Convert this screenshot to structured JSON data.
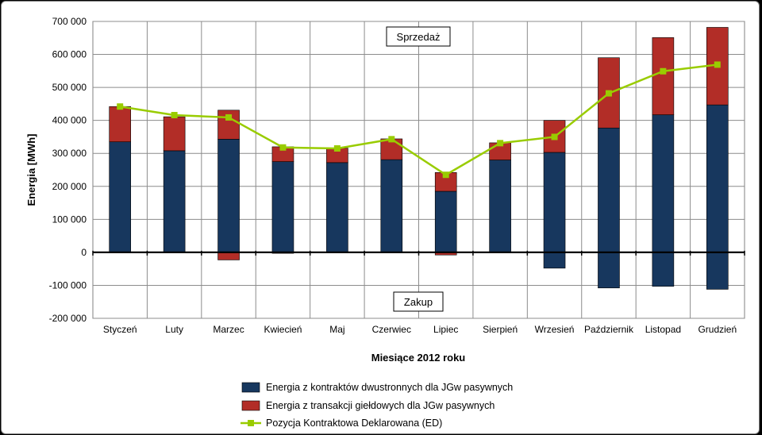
{
  "chart_data": {
    "type": "bar",
    "stacked": true,
    "categories": [
      "Styczeń",
      "Luty",
      "Marzec",
      "Kwiecień",
      "Maj",
      "Czerwiec",
      "Lipiec",
      "Sierpień",
      "Wrzesień",
      "Październik",
      "Listopad",
      "Grudzień"
    ],
    "series": [
      {
        "name": "Energia z kontraktów dwustronnych dla JGw pasywnych",
        "type": "bar",
        "color": "#17375e",
        "values": [
          335000,
          308000,
          343000,
          275000,
          272000,
          281000,
          185000,
          280000,
          303000,
          377000,
          417000,
          447000
        ],
        "negative_values": [
          0,
          0,
          0,
          0,
          0,
          0,
          0,
          0,
          -48000,
          -108000,
          -103000,
          -112000
        ]
      },
      {
        "name": "Energia z transakcji giełdowych dla JGw pasywnych",
        "type": "bar",
        "color": "#b22d27",
        "values": [
          107000,
          103000,
          88000,
          45000,
          44000,
          63000,
          57000,
          52000,
          97000,
          213000,
          234000,
          235000
        ],
        "negative_values": [
          0,
          0,
          -23000,
          -3000,
          0,
          0,
          -8000,
          0,
          0,
          0,
          0,
          0
        ]
      },
      {
        "name": "Pozycja Kontraktowa Deklarowana (ED)",
        "type": "line",
        "color": "#99cc00",
        "values": [
          442000,
          416000,
          409000,
          318000,
          315000,
          343000,
          235000,
          331000,
          350000,
          482000,
          549000,
          569000
        ]
      }
    ],
    "xlabel": "Miesiące 2012 roku",
    "ylabel": "Energia [MWh]",
    "ylim": [
      -200000,
      700000
    ],
    "yticks": [
      700000,
      600000,
      500000,
      400000,
      300000,
      200000,
      100000,
      0,
      -100000,
      -200000
    ],
    "ytick_labels": [
      "700 000",
      "600 000",
      "500 000",
      "400 000",
      "300 000",
      "200 000",
      "100 000",
      "0",
      "-100 000",
      "-200 000"
    ],
    "annotations": [
      "Sprzedaż",
      "Zakup"
    ],
    "grid": true,
    "legend_position": "bottom"
  }
}
